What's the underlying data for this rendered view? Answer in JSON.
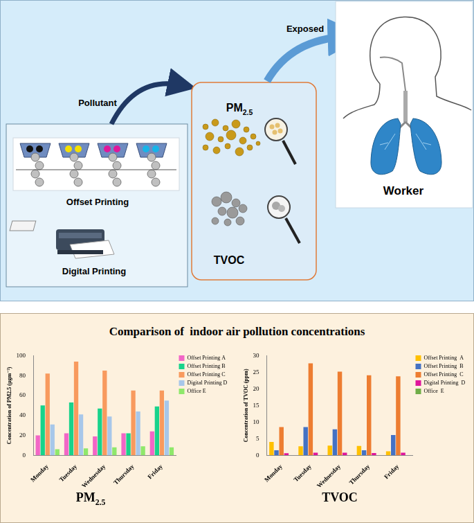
{
  "diagram": {
    "sources": [
      "Offset Printing",
      "Digital Printing"
    ],
    "arrow_to_pollutants": "Pollutant",
    "pollutants": [
      "PM2.5",
      "TVOC"
    ],
    "arrow_to_receptor": "Exposed",
    "receptor": "Worker"
  },
  "panel_title": "Comparison of  indoor air pollution concentrations",
  "chart_data": [
    {
      "type": "bar",
      "title": "PM2.5",
      "y_label": "Concentration of PM2.5 (µgm⁻³)",
      "categories": [
        "Monday",
        "Tuesday",
        "Wednesday",
        "Thursday",
        "Friday"
      ],
      "series": [
        {
          "name": "Offset Printing A",
          "color": "#f266c6",
          "values": [
            20,
            22,
            19,
            22,
            24
          ]
        },
        {
          "name": "Offset Printing B",
          "color": "#18d38b",
          "values": [
            50,
            53,
            47,
            22,
            49
          ]
        },
        {
          "name": "Offset Printing C",
          "color": "#f89a5e",
          "values": [
            82,
            94,
            85,
            65,
            65
          ]
        },
        {
          "name": "Digital Printing D",
          "color": "#a7c7ea",
          "values": [
            31,
            41,
            39,
            44,
            55
          ]
        },
        {
          "name": "Office E",
          "color": "#8fe86b",
          "values": [
            6,
            7,
            8,
            9,
            8
          ]
        }
      ],
      "ylim": [
        0,
        100
      ],
      "yticks": [
        0,
        20,
        40,
        60,
        80,
        100
      ],
      "grid": false,
      "legend": "right"
    },
    {
      "type": "bar",
      "title": "TVOC",
      "y_label": "Concentration of TVOC (ppm)",
      "categories": [
        "Monday",
        "Tuesday",
        "Wednesday",
        "Thursday",
        "Friday"
      ],
      "series": [
        {
          "name": "Offset Printing  A",
          "color": "#ffc000",
          "values": [
            4.0,
            2.7,
            2.9,
            2.8,
            1.2
          ]
        },
        {
          "name": "Offset Printing  B",
          "color": "#4472c4",
          "values": [
            1.5,
            8.5,
            7.8,
            1.5,
            6.1
          ]
        },
        {
          "name": "Offset Printing  C",
          "color": "#ed7d31",
          "values": [
            8.5,
            27.7,
            25.2,
            24.1,
            23.8
          ]
        },
        {
          "name": "Digital Printing  D",
          "color": "#e0159b",
          "values": [
            0.6,
            0.8,
            0.8,
            0.7,
            0.8
          ]
        },
        {
          "name": "Office  E",
          "color": "#70ad47",
          "values": [
            0,
            0,
            0,
            0,
            0
          ]
        }
      ],
      "ylim": [
        0,
        30
      ],
      "yticks": [
        0,
        5,
        10,
        15,
        20,
        25,
        30
      ],
      "grid": false,
      "legend": "right"
    }
  ]
}
